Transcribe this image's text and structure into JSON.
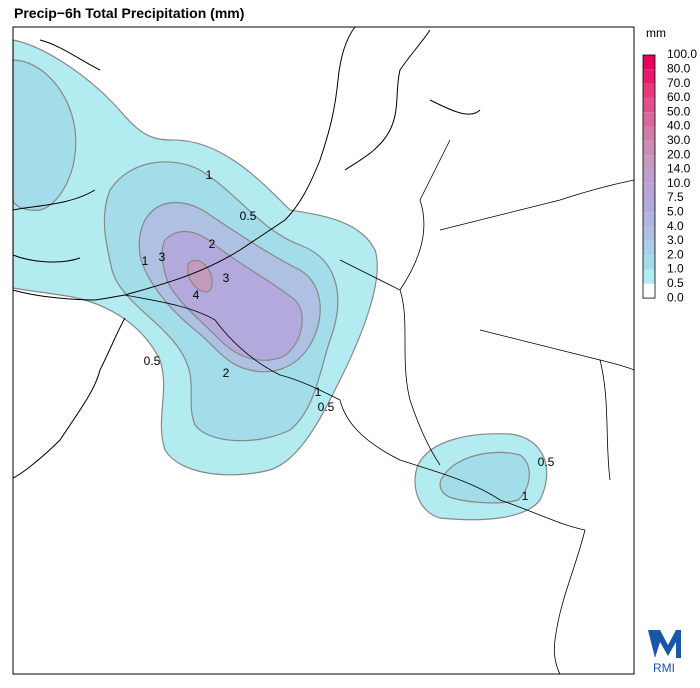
{
  "header": {
    "title": "Precip−6h Total Precipitation (mm)"
  },
  "legend": {
    "unit": "mm",
    "labels": [
      "100.0",
      "80.0",
      "70.0",
      "60.0",
      "50.0",
      "40.0",
      "30.0",
      "20.0",
      "14.0",
      "10.0",
      "7.5",
      "5.0",
      "4.0",
      "3.0",
      "2.0",
      "1.0",
      "0.5",
      "0.0"
    ],
    "colors": [
      "#e8005f",
      "#e61a6c",
      "#e33a7c",
      "#de528c",
      "#d8689b",
      "#d27ca8",
      "#cb8db3",
      "#c59bbd",
      "#be9fcc",
      "#b8a3d6",
      "#b3a9dc",
      "#b1b4df",
      "#aec1e2",
      "#a9cfe7",
      "#a2dde9",
      "#b2ebf0",
      "#ffffff"
    ]
  },
  "contour_labels": [
    "0.5",
    "1",
    "2",
    "3",
    "3",
    "4",
    "1",
    "0.5",
    "2",
    "1",
    "0.5",
    "0.5",
    "1"
  ],
  "logo": {
    "text": "RMI"
  }
}
